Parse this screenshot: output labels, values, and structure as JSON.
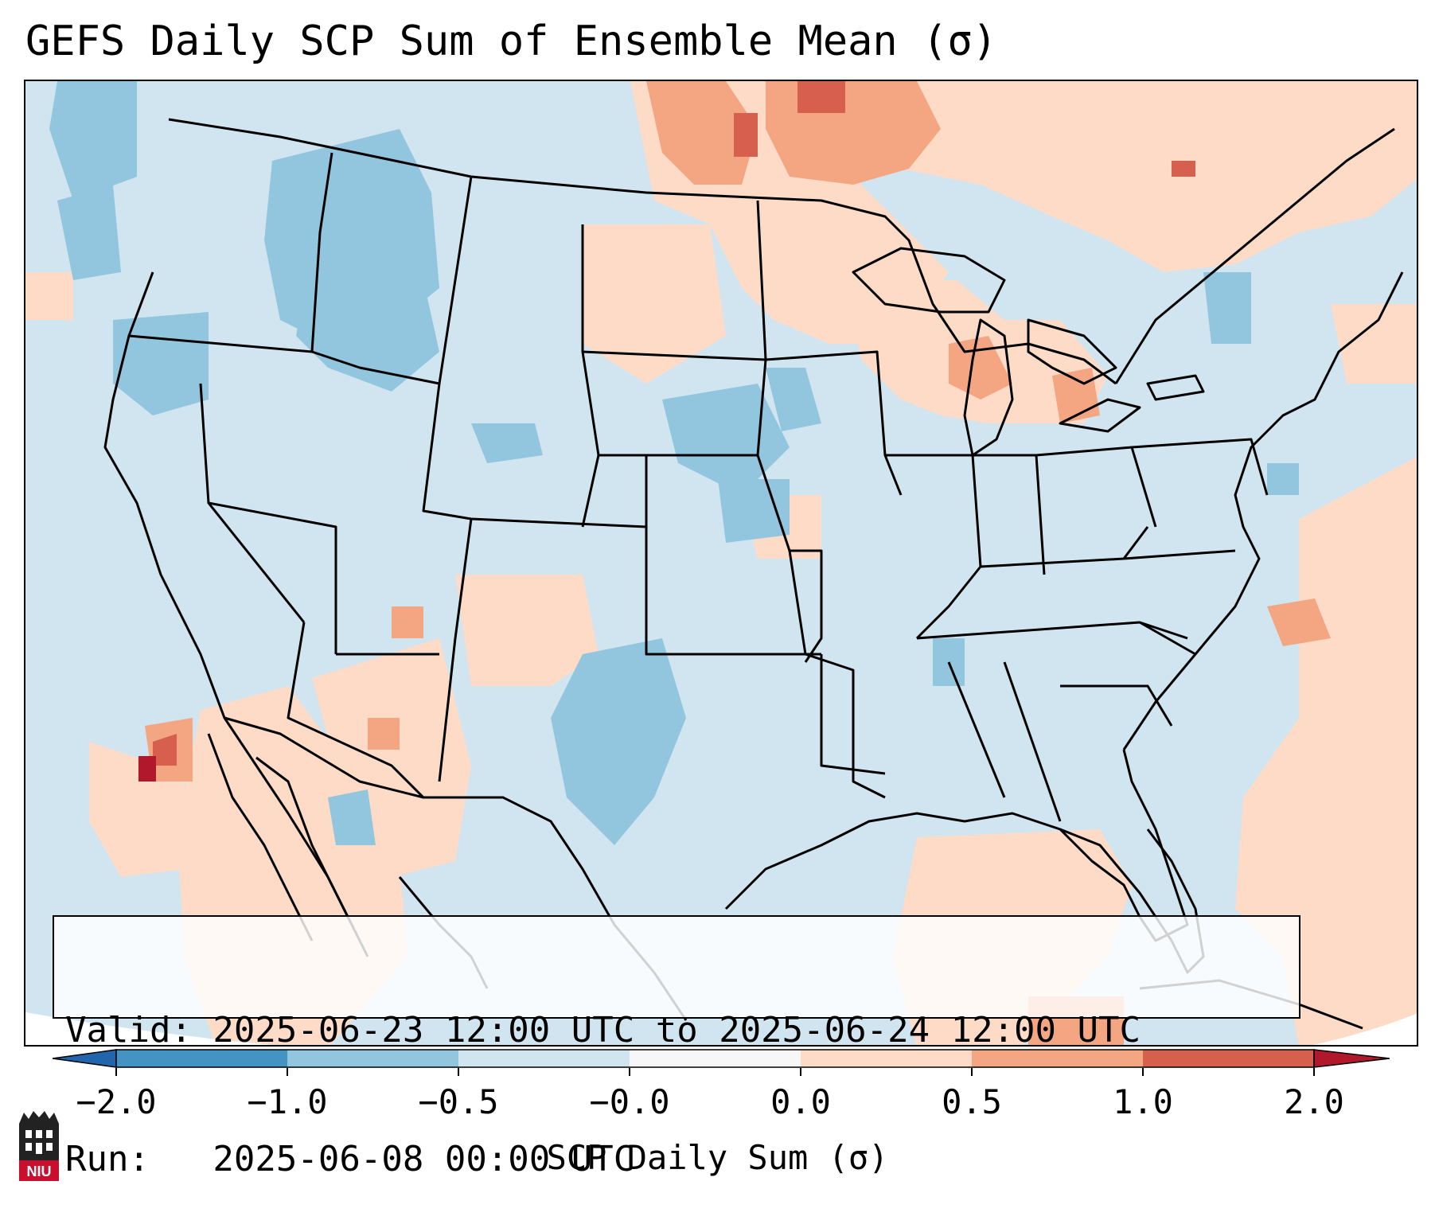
{
  "title": "GEFS Daily SCP Sum of Ensemble Mean (σ)",
  "info": {
    "valid_line": "Valid: 2025-06-23 12:00 UTC to 2025-06-24 12:00 UTC",
    "run_line": "Run:   2025-06-08 00:00 UTC"
  },
  "colorbar": {
    "label": "SCP Daily Sum (σ)",
    "ticks": [
      "−2.0",
      "−1.0",
      "−0.5",
      "−0.0",
      "0.0",
      "0.5",
      "1.0",
      "2.0"
    ],
    "colors": [
      "#2166ac",
      "#4393c3",
      "#92c5de",
      "#d1e5f0",
      "#f7f7f7",
      "#fddbc7",
      "#f4a582",
      "#d6604d",
      "#b2182b"
    ]
  },
  "map": {
    "background_color": "#d1e5f0",
    "positive_color": "#fddbc7",
    "moderate_positive_color": "#f4a582",
    "strong_positive_color": "#d6604d",
    "extreme_positive_color": "#b2182b",
    "negative_color": "#92c5de"
  },
  "logo": {
    "text": "NIU"
  }
}
